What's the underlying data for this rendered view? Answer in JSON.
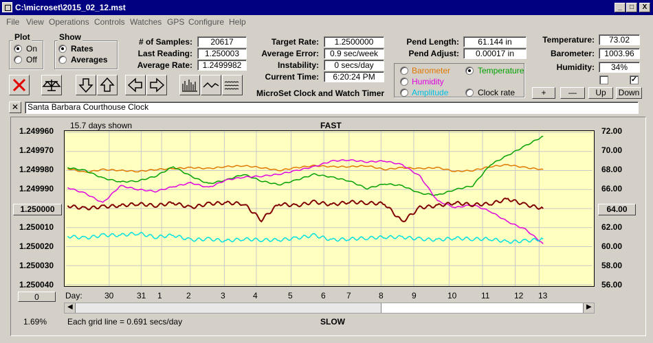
{
  "window": {
    "title": "C:\\microset\\2015_02_12.mst",
    "buttons": [
      "_",
      "□",
      "X"
    ]
  },
  "menu": [
    "File",
    "View",
    "Operations",
    "Controls",
    "Watches",
    "GPS",
    "Configure",
    "Help"
  ],
  "plot_group": {
    "title": "Plot",
    "on": "On",
    "off": "Off",
    "selected": "On"
  },
  "show_group": {
    "title": "Show",
    "rates": "Rates",
    "averages": "Averages",
    "selected": "Rates"
  },
  "stats": {
    "samples_label": "# of Samples:",
    "samples": "20617",
    "last_label": "Last Reading:",
    "last": "1.250003",
    "avg_label": "Average Rate:",
    "avg": "1.2499982",
    "target_label": "Target Rate:",
    "target": "1.2500000",
    "err_label": "Average Error:",
    "err": "0.9 sec/week",
    "inst_label": "Instability:",
    "inst": "0 secs/day",
    "time_label": "Current Time:",
    "time": "6:20:24 PM",
    "pend_len_label": "Pend Length:",
    "pend_len": "61.144 in",
    "pend_adj_label": "Pend Adjust:",
    "pend_adj": "0.00017 in",
    "temp_label": "Temperature:",
    "temp": "73.02",
    "baro_label": "Barometer:",
    "baro": "1003.96",
    "hum_label": "Humidity:",
    "hum": "34%"
  },
  "app_caption": "MicroSet Clock and Watch Timer",
  "sensors": {
    "barometer": "Barometer",
    "temperature": "Temperature",
    "humidity": "Humidity",
    "amplitude": "Amplitude",
    "clock_rate": "Clock rate",
    "selected": "Temperature"
  },
  "side_buttons": {
    "plus": "+",
    "minus": "—",
    "up": "Up",
    "down": "Down"
  },
  "clock_name": "Santa Barbara Courthouse Clock",
  "colors": {
    "barometer": "#e07800",
    "temperature": "#00a000",
    "humidity": "#e000e0",
    "amplitude": "#00e0e0",
    "rate": "#800000",
    "plot_bg": "#ffffc0"
  },
  "chart_data": {
    "type": "line",
    "top_label": "FAST",
    "bottom_label": "SLOW",
    "days_shown": "15.7 days shown",
    "grid_note": "Each grid line = 0.691 secs/day",
    "percent": "1.69%",
    "center_value": "1.250000",
    "center_temp": "64.00",
    "bottom_button": "0",
    "day_label": "Day:",
    "x_ticks": [
      "30",
      "31",
      "1",
      "2",
      "3",
      "4",
      "5",
      "6",
      "7",
      "8",
      "9",
      "10",
      "11",
      "12",
      "13"
    ],
    "y_left_ticks": [
      "1.249960",
      "1.249970",
      "1.249980",
      "1.249990",
      "1.250000",
      "1.250010",
      "1.250020",
      "1.250030",
      "1.250040"
    ],
    "y_right_ticks": [
      "72.00",
      "70.00",
      "68.00",
      "66.00",
      "64.00",
      "62.00",
      "60.00",
      "58.00",
      "56.00"
    ],
    "ylim_left": [
      1.24996,
      1.25004
    ],
    "ylim_right": [
      56,
      72
    ],
    "series": [
      {
        "name": "Barometer",
        "color": "#e07800",
        "values": [
          68.2,
          67.8,
          68.1,
          68.0,
          67.9,
          68.1,
          68.2,
          68.3,
          68.2,
          68.4,
          68.5,
          68.3,
          68.0,
          68.3,
          68.5,
          68.4,
          68.4,
          68.5,
          68.1,
          68.3,
          68.2,
          68.3,
          67.9,
          68.0,
          68.4,
          68.6,
          68.3,
          68.1
        ]
      },
      {
        "name": "Temperature",
        "color": "#00a000",
        "values": [
          68.3,
          68.0,
          67.2,
          66.8,
          66.9,
          67.4,
          68.4,
          67.4,
          66.6,
          67.0,
          67.6,
          66.9,
          66.5,
          67.0,
          67.6,
          67.3,
          66.9,
          66.1,
          66.6,
          66.4,
          65.6,
          65.4,
          66.0,
          66.4,
          68.6,
          69.6,
          70.6,
          71.6
        ]
      },
      {
        "name": "Humidity",
        "color": "#e000e0",
        "values": [
          66.2,
          65.6,
          64.6,
          66.4,
          66.0,
          65.8,
          66.3,
          66.7,
          66.2,
          67.0,
          67.3,
          67.4,
          67.6,
          68.0,
          68.4,
          69.0,
          69.1,
          68.9,
          69.0,
          68.6,
          67.4,
          64.8,
          64.1,
          64.4,
          63.7,
          62.6,
          61.8,
          60.3
        ]
      },
      {
        "name": "Amplitude",
        "color": "#00e0e0",
        "values": [
          61.1,
          60.9,
          61.2,
          61.2,
          61.4,
          61.0,
          61.2,
          60.7,
          60.8,
          60.6,
          60.8,
          60.7,
          60.7,
          60.9,
          61.2,
          60.7,
          60.8,
          60.9,
          61.0,
          61.0,
          60.8,
          60.7,
          60.9,
          60.8,
          60.8,
          60.5,
          60.6,
          60.8
        ]
      },
      {
        "name": "Rate",
        "color": "#800000",
        "values": [
          64.3,
          64.0,
          64.2,
          64.3,
          64.5,
          64.3,
          64.6,
          64.1,
          64.5,
          64.6,
          64.5,
          62.8,
          64.5,
          64.3,
          64.7,
          64.4,
          64.7,
          64.6,
          64.5,
          62.6,
          64.1,
          64.3,
          64.6,
          64.4,
          64.5,
          65.0,
          64.4,
          64.0
        ]
      }
    ]
  }
}
